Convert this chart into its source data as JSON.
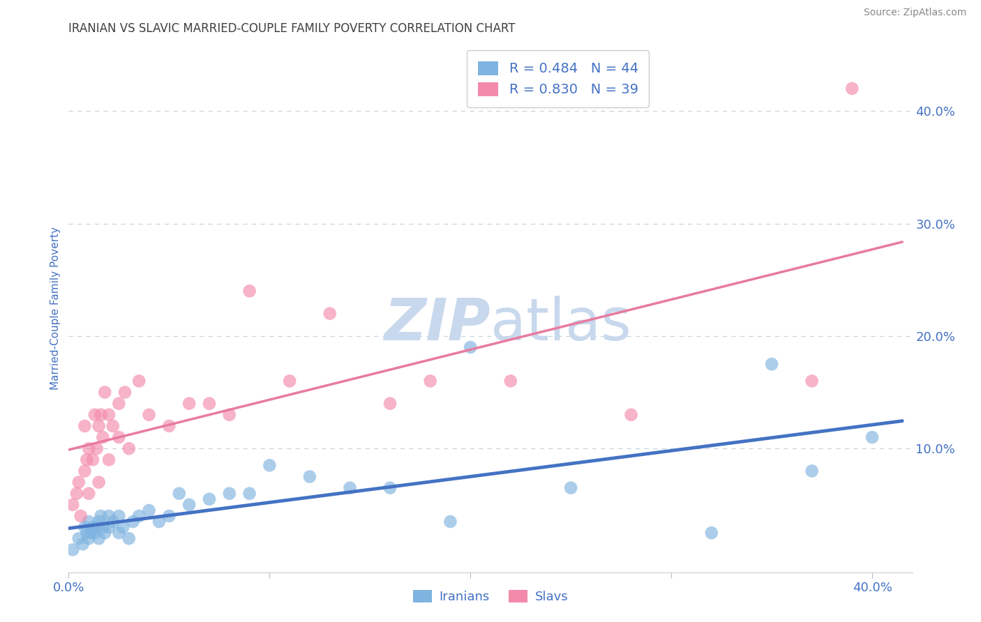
{
  "title": "IRANIAN VS SLAVIC MARRIED-COUPLE FAMILY POVERTY CORRELATION CHART",
  "source": "Source: ZipAtlas.com",
  "ylabel": "Married-Couple Family Poverty",
  "xlim": [
    0.0,
    0.42
  ],
  "ylim": [
    -0.01,
    0.46
  ],
  "iranian_color": "#7fb3e0",
  "slav_color": "#f48aaa",
  "iranian_line_color": "#4472c4",
  "slav_line_color": "#e87aa0",
  "watermark": "ZIPatlas",
  "watermark_color": "#c8d8ed",
  "background_color": "#ffffff",
  "grid_color": "#c8d4e0",
  "title_color": "#404040",
  "axis_label_color": "#4472c4",
  "iranians_x": [
    0.002,
    0.005,
    0.007,
    0.008,
    0.009,
    0.01,
    0.01,
    0.011,
    0.012,
    0.013,
    0.014,
    0.015,
    0.015,
    0.016,
    0.017,
    0.018,
    0.02,
    0.02,
    0.022,
    0.025,
    0.025,
    0.027,
    0.03,
    0.032,
    0.035,
    0.04,
    0.045,
    0.05,
    0.055,
    0.06,
    0.07,
    0.08,
    0.09,
    0.1,
    0.12,
    0.14,
    0.16,
    0.19,
    0.2,
    0.25,
    0.32,
    0.35,
    0.37,
    0.4
  ],
  "iranians_y": [
    0.01,
    0.02,
    0.015,
    0.03,
    0.025,
    0.02,
    0.035,
    0.025,
    0.03,
    0.025,
    0.03,
    0.02,
    0.035,
    0.04,
    0.03,
    0.025,
    0.03,
    0.04,
    0.035,
    0.025,
    0.04,
    0.03,
    0.02,
    0.035,
    0.04,
    0.045,
    0.035,
    0.04,
    0.06,
    0.05,
    0.055,
    0.06,
    0.06,
    0.085,
    0.075,
    0.065,
    0.065,
    0.035,
    0.19,
    0.065,
    0.025,
    0.175,
    0.08,
    0.11
  ],
  "slavs_x": [
    0.002,
    0.004,
    0.005,
    0.006,
    0.008,
    0.008,
    0.009,
    0.01,
    0.01,
    0.012,
    0.013,
    0.014,
    0.015,
    0.015,
    0.016,
    0.017,
    0.018,
    0.02,
    0.02,
    0.022,
    0.025,
    0.025,
    0.028,
    0.03,
    0.035,
    0.04,
    0.05,
    0.06,
    0.07,
    0.08,
    0.09,
    0.11,
    0.13,
    0.16,
    0.18,
    0.22,
    0.28,
    0.37,
    0.39
  ],
  "slavs_y": [
    0.05,
    0.06,
    0.07,
    0.04,
    0.12,
    0.08,
    0.09,
    0.1,
    0.06,
    0.09,
    0.13,
    0.1,
    0.07,
    0.12,
    0.13,
    0.11,
    0.15,
    0.13,
    0.09,
    0.12,
    0.14,
    0.11,
    0.15,
    0.1,
    0.16,
    0.13,
    0.12,
    0.14,
    0.14,
    0.13,
    0.24,
    0.16,
    0.22,
    0.14,
    0.16,
    0.16,
    0.13,
    0.16,
    0.42
  ],
  "legend_iranian_label": "R = 0.484   N = 44",
  "legend_slav_label": "R = 0.830   N = 39",
  "bottom_legend_iranian": "Iranians",
  "bottom_legend_slav": "Slavs"
}
